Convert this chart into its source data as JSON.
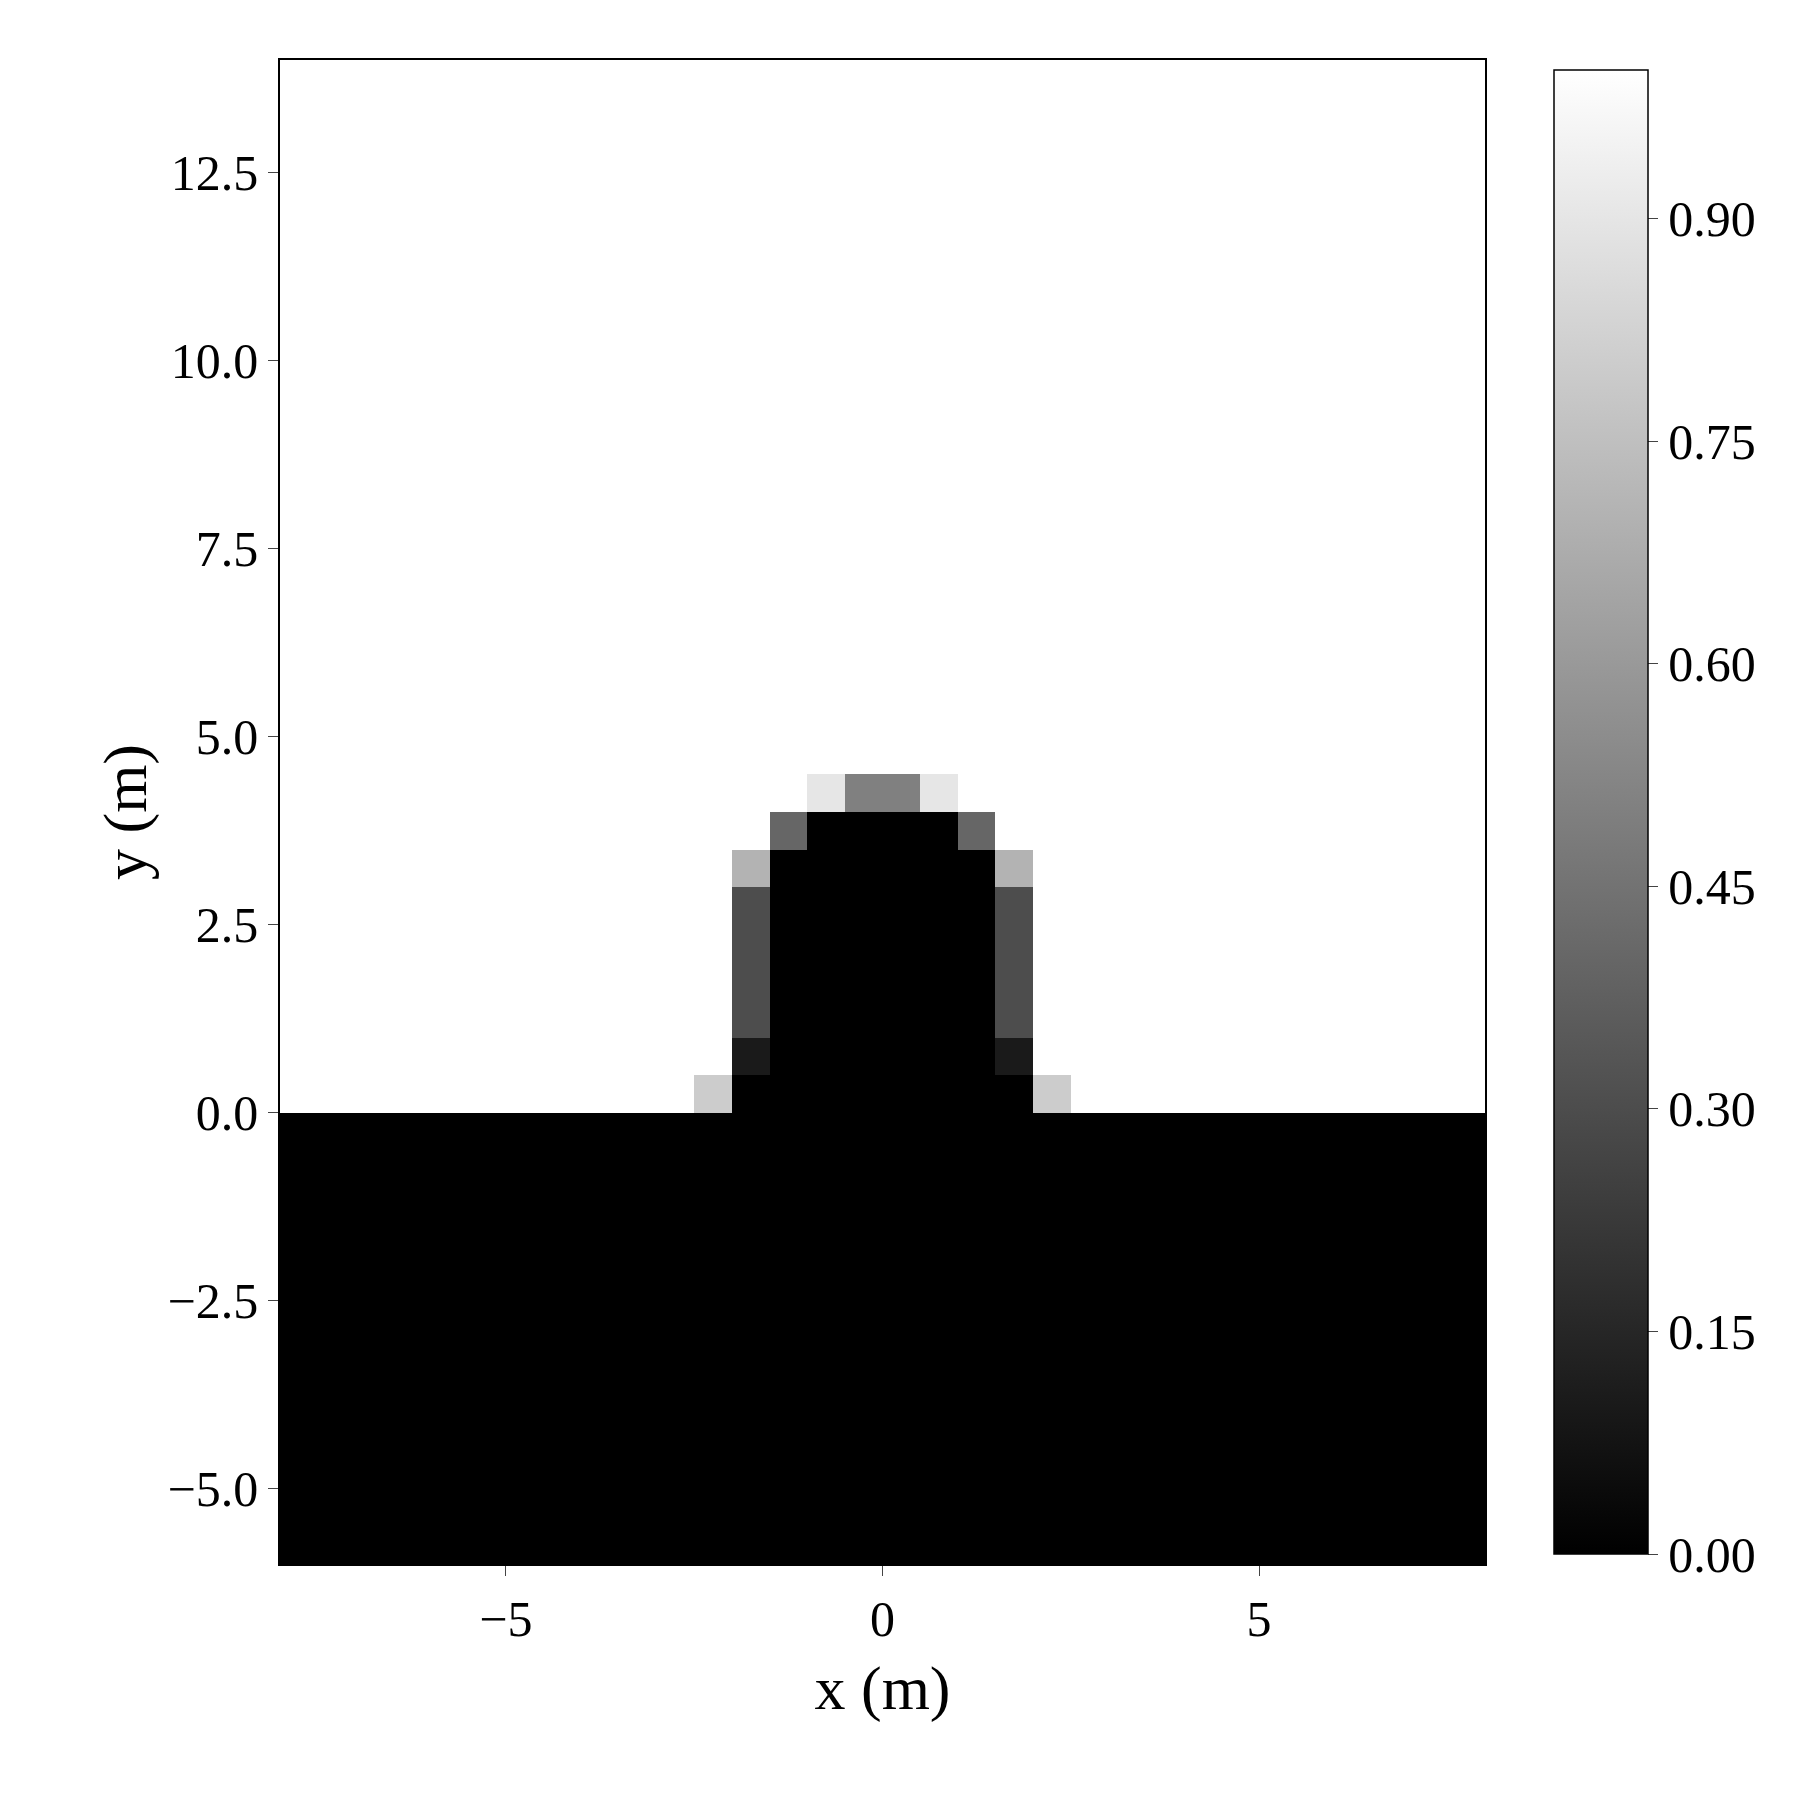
{
  "chart_data": {
    "type": "heatmap",
    "xlabel": "x (m)",
    "ylabel": "y (m)",
    "x": [
      -7.75,
      -7.25,
      -6.75,
      -6.25,
      -5.75,
      -5.25,
      -4.75,
      -4.25,
      -3.75,
      -3.25,
      -2.75,
      -2.25,
      -1.75,
      -1.25,
      -0.75,
      -0.25,
      0.25,
      0.75,
      1.25,
      1.75,
      2.25,
      2.75,
      3.25,
      3.75,
      4.25,
      4.75,
      5.25,
      5.75,
      6.25,
      6.75,
      7.25,
      7.75
    ],
    "y": [
      13.75,
      13.25,
      12.75,
      12.25,
      11.75,
      11.25,
      10.75,
      10.25,
      9.75,
      9.25,
      8.75,
      8.25,
      7.75,
      7.25,
      6.75,
      6.25,
      5.75,
      5.25,
      4.75,
      4.25,
      3.75,
      3.25,
      2.75,
      2.25,
      1.75,
      1.25,
      0.75,
      0.25,
      -0.25,
      -0.75,
      -1.25,
      -1.75,
      -2.25,
      -2.75,
      -3.25,
      -3.75,
      -4.25,
      -4.75,
      -5.25,
      -5.75
    ],
    "cells": [
      [
        1,
        1,
        1,
        1,
        1,
        1,
        1,
        1,
        1,
        1,
        1,
        1,
        1,
        1,
        1,
        1,
        1,
        1,
        1,
        1,
        1,
        1,
        1,
        1,
        1,
        1,
        1,
        1,
        1,
        1,
        1,
        1
      ],
      [
        1,
        1,
        1,
        1,
        1,
        1,
        1,
        1,
        1,
        1,
        1,
        1,
        1,
        1,
        1,
        1,
        1,
        1,
        1,
        1,
        1,
        1,
        1,
        1,
        1,
        1,
        1,
        1,
        1,
        1,
        1,
        1
      ],
      [
        1,
        1,
        1,
        1,
        1,
        1,
        1,
        1,
        1,
        1,
        1,
        1,
        1,
        1,
        1,
        1,
        1,
        1,
        1,
        1,
        1,
        1,
        1,
        1,
        1,
        1,
        1,
        1,
        1,
        1,
        1,
        1
      ],
      [
        1,
        1,
        1,
        1,
        1,
        1,
        1,
        1,
        1,
        1,
        1,
        1,
        1,
        1,
        1,
        1,
        1,
        1,
        1,
        1,
        1,
        1,
        1,
        1,
        1,
        1,
        1,
        1,
        1,
        1,
        1,
        1
      ],
      [
        1,
        1,
        1,
        1,
        1,
        1,
        1,
        1,
        1,
        1,
        1,
        1,
        1,
        1,
        1,
        1,
        1,
        1,
        1,
        1,
        1,
        1,
        1,
        1,
        1,
        1,
        1,
        1,
        1,
        1,
        1,
        1
      ],
      [
        1,
        1,
        1,
        1,
        1,
        1,
        1,
        1,
        1,
        1,
        1,
        1,
        1,
        1,
        1,
        1,
        1,
        1,
        1,
        1,
        1,
        1,
        1,
        1,
        1,
        1,
        1,
        1,
        1,
        1,
        1,
        1
      ],
      [
        1,
        1,
        1,
        1,
        1,
        1,
        1,
        1,
        1,
        1,
        1,
        1,
        1,
        1,
        1,
        1,
        1,
        1,
        1,
        1,
        1,
        1,
        1,
        1,
        1,
        1,
        1,
        1,
        1,
        1,
        1,
        1
      ],
      [
        1,
        1,
        1,
        1,
        1,
        1,
        1,
        1,
        1,
        1,
        1,
        1,
        1,
        1,
        1,
        1,
        1,
        1,
        1,
        1,
        1,
        1,
        1,
        1,
        1,
        1,
        1,
        1,
        1,
        1,
        1,
        1
      ],
      [
        1,
        1,
        1,
        1,
        1,
        1,
        1,
        1,
        1,
        1,
        1,
        1,
        1,
        1,
        1,
        1,
        1,
        1,
        1,
        1,
        1,
        1,
        1,
        1,
        1,
        1,
        1,
        1,
        1,
        1,
        1,
        1
      ],
      [
        1,
        1,
        1,
        1,
        1,
        1,
        1,
        1,
        1,
        1,
        1,
        1,
        1,
        1,
        1,
        1,
        1,
        1,
        1,
        1,
        1,
        1,
        1,
        1,
        1,
        1,
        1,
        1,
        1,
        1,
        1,
        1
      ],
      [
        1,
        1,
        1,
        1,
        1,
        1,
        1,
        1,
        1,
        1,
        1,
        1,
        1,
        1,
        1,
        1,
        1,
        1,
        1,
        1,
        1,
        1,
        1,
        1,
        1,
        1,
        1,
        1,
        1,
        1,
        1,
        1
      ],
      [
        1,
        1,
        1,
        1,
        1,
        1,
        1,
        1,
        1,
        1,
        1,
        1,
        1,
        1,
        1,
        1,
        1,
        1,
        1,
        1,
        1,
        1,
        1,
        1,
        1,
        1,
        1,
        1,
        1,
        1,
        1,
        1
      ],
      [
        1,
        1,
        1,
        1,
        1,
        1,
        1,
        1,
        1,
        1,
        1,
        1,
        1,
        1,
        1,
        1,
        1,
        1,
        1,
        1,
        1,
        1,
        1,
        1,
        1,
        1,
        1,
        1,
        1,
        1,
        1,
        1
      ],
      [
        1,
        1,
        1,
        1,
        1,
        1,
        1,
        1,
        1,
        1,
        1,
        1,
        1,
        1,
        1,
        1,
        1,
        1,
        1,
        1,
        1,
        1,
        1,
        1,
        1,
        1,
        1,
        1,
        1,
        1,
        1,
        1
      ],
      [
        1,
        1,
        1,
        1,
        1,
        1,
        1,
        1,
        1,
        1,
        1,
        1,
        1,
        1,
        1,
        1,
        1,
        1,
        1,
        1,
        1,
        1,
        1,
        1,
        1,
        1,
        1,
        1,
        1,
        1,
        1,
        1
      ],
      [
        1,
        1,
        1,
        1,
        1,
        1,
        1,
        1,
        1,
        1,
        1,
        1,
        1,
        1,
        1,
        1,
        1,
        1,
        1,
        1,
        1,
        1,
        1,
        1,
        1,
        1,
        1,
        1,
        1,
        1,
        1,
        1
      ],
      [
        1,
        1,
        1,
        1,
        1,
        1,
        1,
        1,
        1,
        1,
        1,
        1,
        1,
        1,
        1,
        1,
        1,
        1,
        1,
        1,
        1,
        1,
        1,
        1,
        1,
        1,
        1,
        1,
        1,
        1,
        1,
        1
      ],
      [
        1,
        1,
        1,
        1,
        1,
        1,
        1,
        1,
        1,
        1,
        1,
        1,
        1,
        1,
        1,
        1,
        1,
        1,
        1,
        1,
        1,
        1,
        1,
        1,
        1,
        1,
        1,
        1,
        1,
        1,
        1,
        1
      ],
      [
        1,
        1,
        1,
        1,
        1,
        1,
        1,
        1,
        1,
        1,
        1,
        1,
        1,
        1,
        1,
        1,
        1,
        1,
        1,
        1,
        1,
        1,
        1,
        1,
        1,
        1,
        1,
        1,
        1,
        1,
        1,
        1
      ],
      [
        1,
        1,
        1,
        1,
        1,
        1,
        1,
        1,
        1,
        1,
        1,
        1,
        1,
        1,
        0.9,
        0.5,
        0.5,
        0.9,
        1,
        1,
        1,
        1,
        1,
        1,
        1,
        1,
        1,
        1,
        1,
        1,
        1,
        1
      ],
      [
        1,
        1,
        1,
        1,
        1,
        1,
        1,
        1,
        1,
        1,
        1,
        1,
        1,
        0.4,
        0,
        0,
        0,
        0,
        0.4,
        1,
        1,
        1,
        1,
        1,
        1,
        1,
        1,
        1,
        1,
        1,
        1,
        1
      ],
      [
        1,
        1,
        1,
        1,
        1,
        1,
        1,
        1,
        1,
        1,
        1,
        1,
        0.7,
        0,
        0,
        0,
        0,
        0,
        0,
        0.7,
        1,
        1,
        1,
        1,
        1,
        1,
        1,
        1,
        1,
        1,
        1,
        1
      ],
      [
        1,
        1,
        1,
        1,
        1,
        1,
        1,
        1,
        1,
        1,
        1,
        1,
        0.3,
        0,
        0,
        0,
        0,
        0,
        0,
        0.3,
        1,
        1,
        1,
        1,
        1,
        1,
        1,
        1,
        1,
        1,
        1,
        1
      ],
      [
        1,
        1,
        1,
        1,
        1,
        1,
        1,
        1,
        1,
        1,
        1,
        1,
        0.3,
        0,
        0,
        0,
        0,
        0,
        0,
        0.3,
        1,
        1,
        1,
        1,
        1,
        1,
        1,
        1,
        1,
        1,
        1,
        1
      ],
      [
        1,
        1,
        1,
        1,
        1,
        1,
        1,
        1,
        1,
        1,
        1,
        1,
        0.3,
        0,
        0,
        0,
        0,
        0,
        0,
        0.3,
        1,
        1,
        1,
        1,
        1,
        1,
        1,
        1,
        1,
        1,
        1,
        1
      ],
      [
        1,
        1,
        1,
        1,
        1,
        1,
        1,
        1,
        1,
        1,
        1,
        1,
        0.3,
        0,
        0,
        0,
        0,
        0,
        0,
        0.3,
        1,
        1,
        1,
        1,
        1,
        1,
        1,
        1,
        1,
        1,
        1,
        1
      ],
      [
        1,
        1,
        1,
        1,
        1,
        1,
        1,
        1,
        1,
        1,
        1,
        1,
        0.1,
        0,
        0,
        0,
        0,
        0,
        0,
        0.1,
        1,
        1,
        1,
        1,
        1,
        1,
        1,
        1,
        1,
        1,
        1,
        1
      ],
      [
        1,
        1,
        1,
        1,
        1,
        1,
        1,
        1,
        1,
        1,
        1,
        0.8,
        0,
        0,
        0,
        0,
        0,
        0,
        0,
        0,
        0.8,
        1,
        1,
        1,
        1,
        1,
        1,
        1,
        1,
        1,
        1,
        1
      ],
      [
        0,
        0,
        0,
        0,
        0,
        0,
        0,
        0,
        0,
        0,
        0,
        0,
        0,
        0,
        0,
        0,
        0,
        0,
        0,
        0,
        0,
        0,
        0,
        0,
        0,
        0,
        0,
        0,
        0,
        0,
        0,
        0
      ],
      [
        0,
        0,
        0,
        0,
        0,
        0,
        0,
        0,
        0,
        0,
        0,
        0,
        0,
        0,
        0,
        0,
        0,
        0,
        0,
        0,
        0,
        0,
        0,
        0,
        0,
        0,
        0,
        0,
        0,
        0,
        0,
        0
      ],
      [
        0,
        0,
        0,
        0,
        0,
        0,
        0,
        0,
        0,
        0,
        0,
        0,
        0,
        0,
        0,
        0,
        0,
        0,
        0,
        0,
        0,
        0,
        0,
        0,
        0,
        0,
        0,
        0,
        0,
        0,
        0,
        0
      ],
      [
        0,
        0,
        0,
        0,
        0,
        0,
        0,
        0,
        0,
        0,
        0,
        0,
        0,
        0,
        0,
        0,
        0,
        0,
        0,
        0,
        0,
        0,
        0,
        0,
        0,
        0,
        0,
        0,
        0,
        0,
        0,
        0
      ],
      [
        0,
        0,
        0,
        0,
        0,
        0,
        0,
        0,
        0,
        0,
        0,
        0,
        0,
        0,
        0,
        0,
        0,
        0,
        0,
        0,
        0,
        0,
        0,
        0,
        0,
        0,
        0,
        0,
        0,
        0,
        0,
        0
      ],
      [
        0,
        0,
        0,
        0,
        0,
        0,
        0,
        0,
        0,
        0,
        0,
        0,
        0,
        0,
        0,
        0,
        0,
        0,
        0,
        0,
        0,
        0,
        0,
        0,
        0,
        0,
        0,
        0,
        0,
        0,
        0,
        0
      ],
      [
        0,
        0,
        0,
        0,
        0,
        0,
        0,
        0,
        0,
        0,
        0,
        0,
        0,
        0,
        0,
        0,
        0,
        0,
        0,
        0,
        0,
        0,
        0,
        0,
        0,
        0,
        0,
        0,
        0,
        0,
        0,
        0
      ],
      [
        0,
        0,
        0,
        0,
        0,
        0,
        0,
        0,
        0,
        0,
        0,
        0,
        0,
        0,
        0,
        0,
        0,
        0,
        0,
        0,
        0,
        0,
        0,
        0,
        0,
        0,
        0,
        0,
        0,
        0,
        0,
        0
      ],
      [
        0,
        0,
        0,
        0,
        0,
        0,
        0,
        0,
        0,
        0,
        0,
        0,
        0,
        0,
        0,
        0,
        0,
        0,
        0,
        0,
        0,
        0,
        0,
        0,
        0,
        0,
        0,
        0,
        0,
        0,
        0,
        0
      ],
      [
        0,
        0,
        0,
        0,
        0,
        0,
        0,
        0,
        0,
        0,
        0,
        0,
        0,
        0,
        0,
        0,
        0,
        0,
        0,
        0,
        0,
        0,
        0,
        0,
        0,
        0,
        0,
        0,
        0,
        0,
        0,
        0
      ],
      [
        0,
        0,
        0,
        0,
        0,
        0,
        0,
        0,
        0,
        0,
        0,
        0,
        0,
        0,
        0,
        0,
        0,
        0,
        0,
        0,
        0,
        0,
        0,
        0,
        0,
        0,
        0,
        0,
        0,
        0,
        0,
        0
      ],
      [
        0,
        0,
        0,
        0,
        0,
        0,
        0,
        0,
        0,
        0,
        0,
        0,
        0,
        0,
        0,
        0,
        0,
        0,
        0,
        0,
        0,
        0,
        0,
        0,
        0,
        0,
        0,
        0,
        0,
        0,
        0,
        0
      ]
    ],
    "clim": [
      0,
      1
    ],
    "cticks": [
      {
        "value": 0,
        "label": "0.00"
      },
      {
        "value": 0.15,
        "label": "0.15"
      },
      {
        "value": 0.3,
        "label": "0.30"
      },
      {
        "value": 0.45,
        "label": "0.45"
      },
      {
        "value": 0.6,
        "label": "0.60"
      },
      {
        "value": 0.75,
        "label": "0.75"
      },
      {
        "value": 0.9,
        "label": "0.90"
      }
    ],
    "xlim": [
      -8,
      8
    ],
    "ylim": [
      -6,
      14
    ],
    "xticks": [
      {
        "value": -5,
        "label": "−5"
      },
      0,
      5
    ],
    "yticks": [
      {
        "value": -5,
        "label": "−5.0"
      },
      {
        "value": -2.5,
        "label": "−2.5"
      },
      {
        "value": 0,
        "label": "0.0"
      },
      2.5,
      {
        "value": 5,
        "label": "5.0"
      },
      7.5,
      {
        "value": 10,
        "label": "10.0"
      },
      12.5
    ]
  }
}
